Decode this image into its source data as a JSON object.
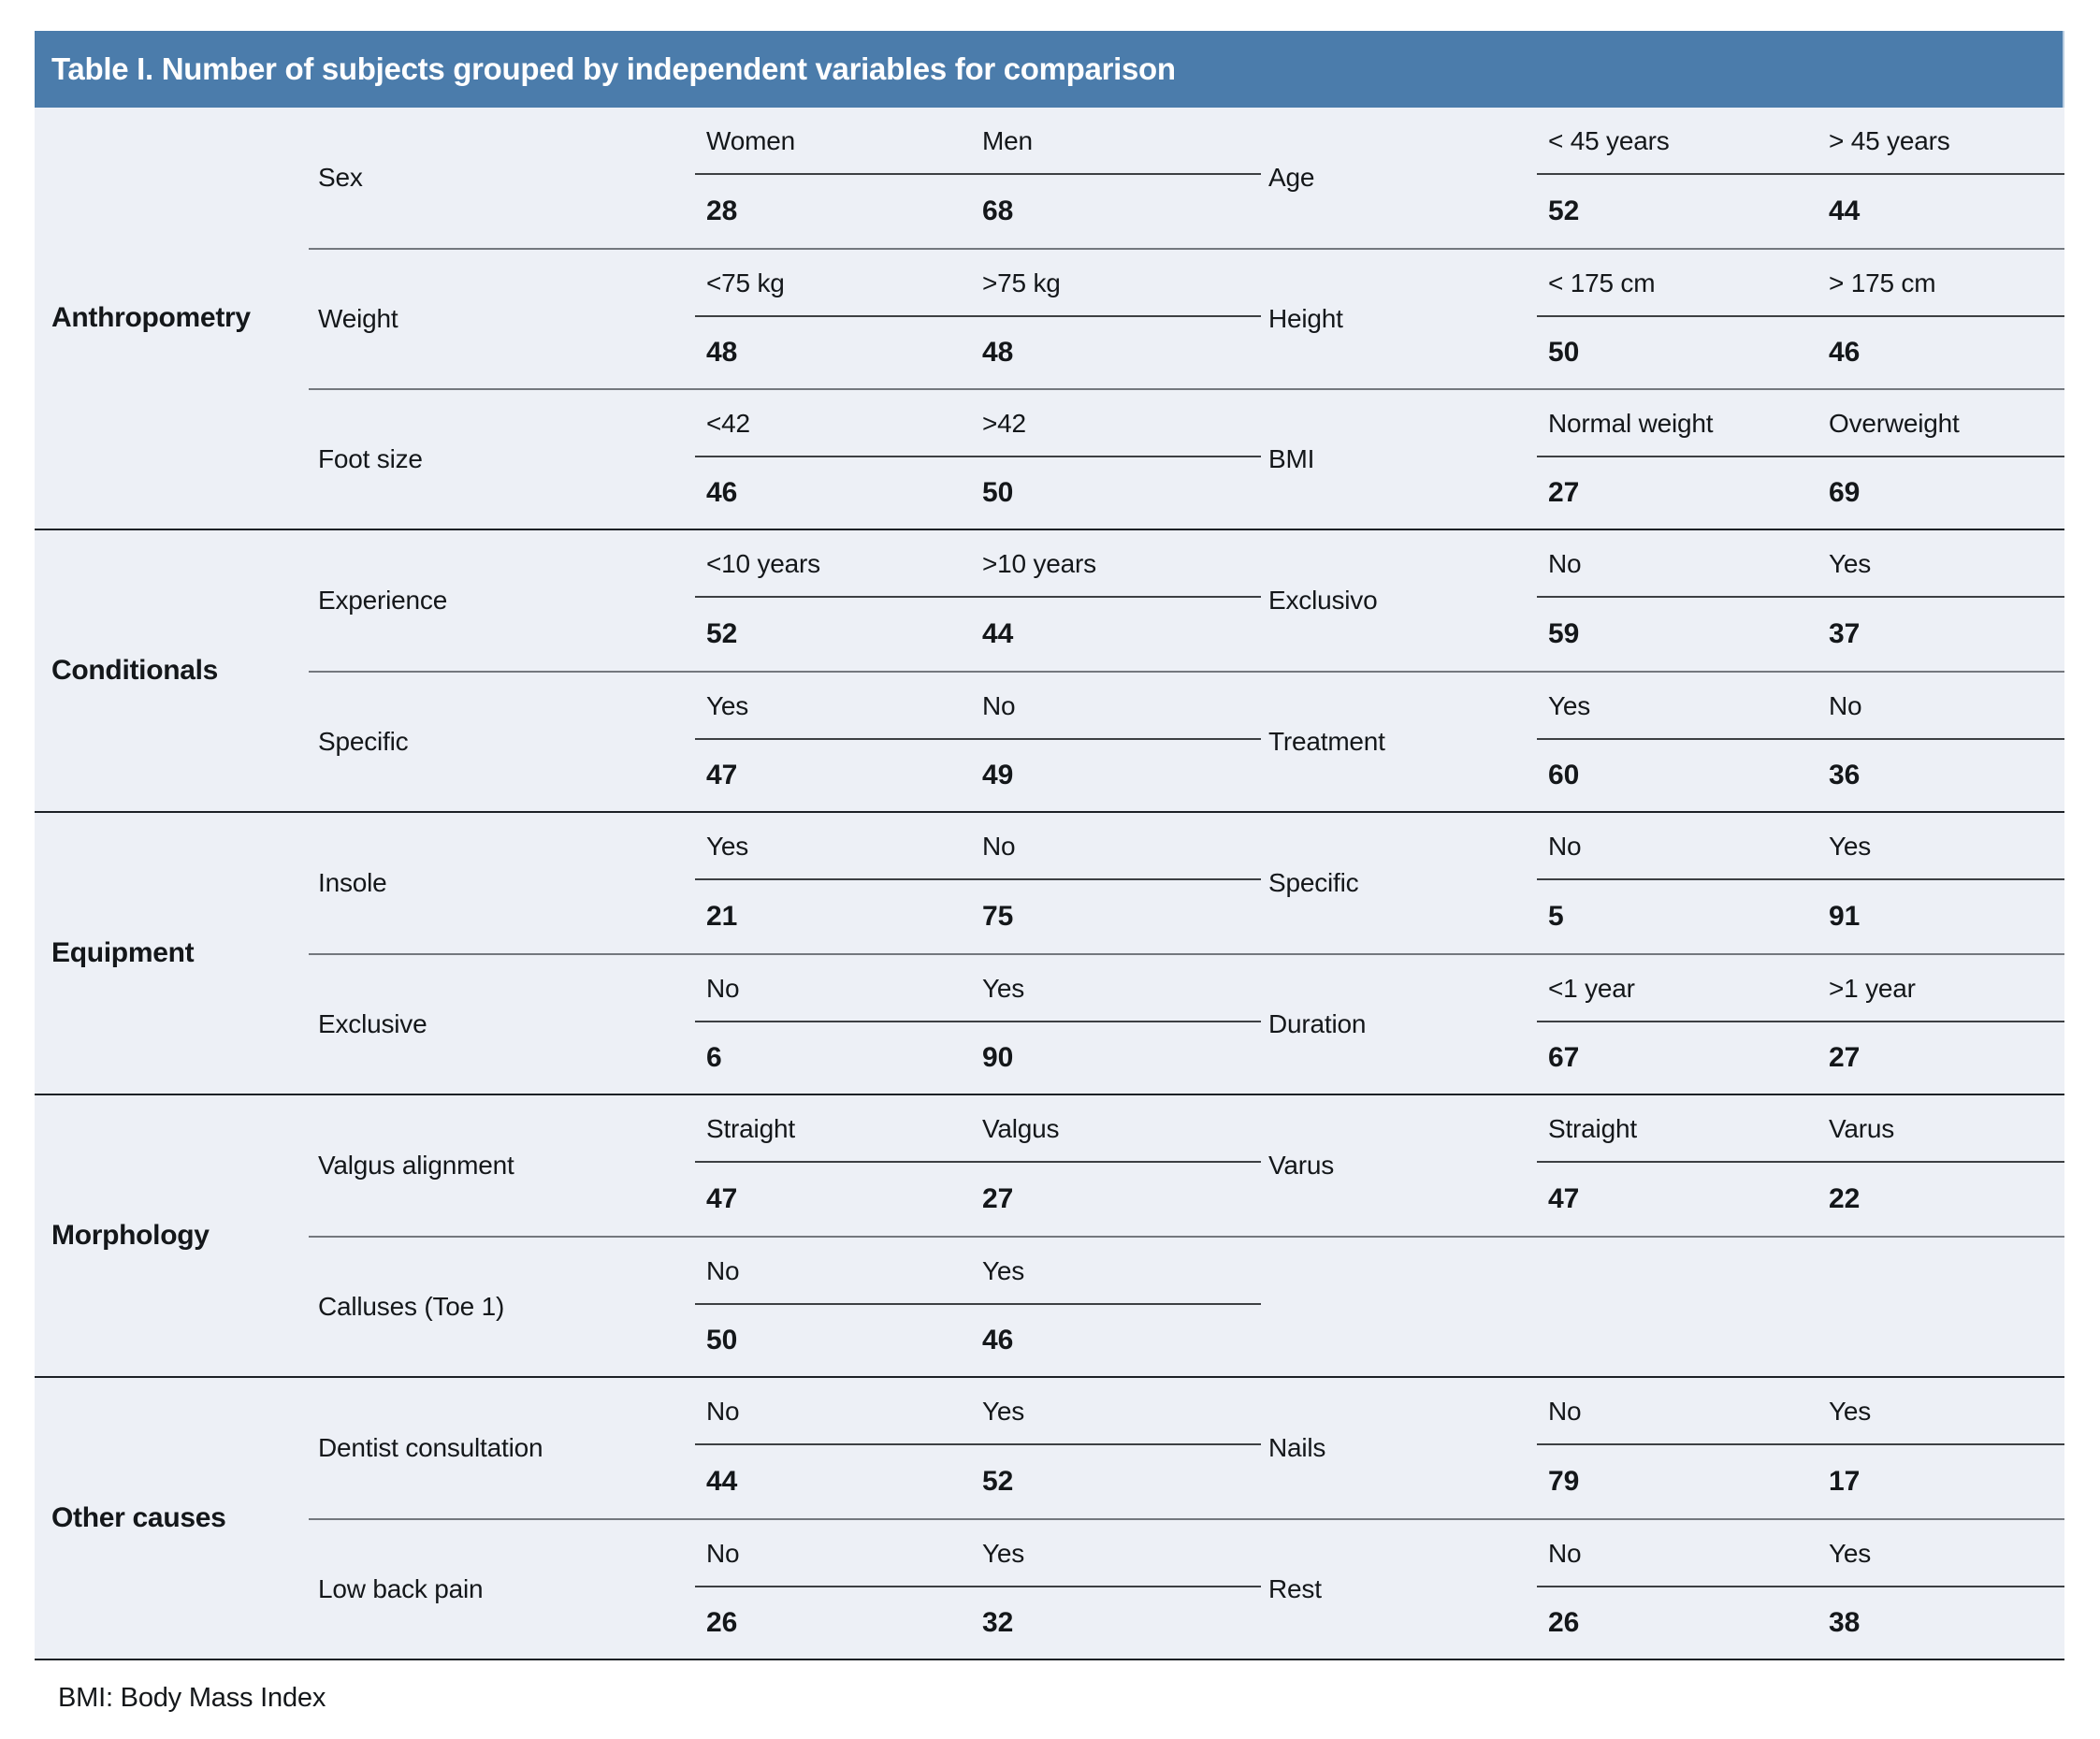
{
  "title": "Table I. Number of subjects grouped by independent variables for comparison",
  "footnote": "BMI: Body Mass Index",
  "colors": {
    "header_bg": "#4b7cab",
    "header_text": "#ffffff",
    "body_bg": "#edf0f6",
    "section_line": "#1d2126",
    "row_line": "#74787e",
    "text": "#14171a"
  },
  "sections": [
    {
      "group": "Anthropometry",
      "rows": [
        {
          "left": {
            "variable": "Sex",
            "headers": [
              "Women",
              "Men"
            ],
            "values": [
              "28",
              "68"
            ]
          },
          "right": {
            "variable": "Age",
            "headers": [
              "< 45 years",
              "> 45 years"
            ],
            "values": [
              "52",
              "44"
            ]
          }
        },
        {
          "left": {
            "variable": "Weight",
            "headers": [
              "<75 kg",
              ">75 kg"
            ],
            "values": [
              "48",
              "48"
            ]
          },
          "right": {
            "variable": "Height",
            "headers": [
              "< 175 cm",
              "> 175 cm"
            ],
            "values": [
              "50",
              "46"
            ]
          }
        },
        {
          "left": {
            "variable": "Foot size",
            "headers": [
              "<42",
              ">42"
            ],
            "values": [
              "46",
              "50"
            ]
          },
          "right": {
            "variable": "BMI",
            "headers": [
              "Normal weight",
              "Overweight"
            ],
            "values": [
              "27",
              "69"
            ]
          }
        }
      ]
    },
    {
      "group": "Conditionals",
      "rows": [
        {
          "left": {
            "variable": "Experience",
            "headers": [
              "<10 years",
              ">10 years"
            ],
            "values": [
              "52",
              "44"
            ]
          },
          "right": {
            "variable": "Exclusivo",
            "headers": [
              "No",
              "Yes"
            ],
            "values": [
              "59",
              "37"
            ]
          }
        },
        {
          "left": {
            "variable": "Specific",
            "headers": [
              "Yes",
              "No"
            ],
            "values": [
              "47",
              "49"
            ]
          },
          "right": {
            "variable": "Treatment",
            "headers": [
              "Yes",
              "No"
            ],
            "values": [
              "60",
              "36"
            ]
          }
        }
      ]
    },
    {
      "group": "Equipment",
      "rows": [
        {
          "left": {
            "variable": "Insole",
            "headers": [
              "Yes",
              "No"
            ],
            "values": [
              "21",
              "75"
            ]
          },
          "right": {
            "variable": "Specific",
            "headers": [
              "No",
              "Yes"
            ],
            "values": [
              "5",
              "91"
            ]
          }
        },
        {
          "left": {
            "variable": "Exclusive",
            "headers": [
              "No",
              "Yes"
            ],
            "values": [
              "6",
              "90"
            ]
          },
          "right": {
            "variable": "Duration",
            "headers": [
              "<1 year",
              ">1 year"
            ],
            "values": [
              "67",
              "27"
            ]
          }
        }
      ]
    },
    {
      "group": "Morphology",
      "rows": [
        {
          "left": {
            "variable": "Valgus alignment",
            "headers": [
              "Straight",
              "Valgus"
            ],
            "values": [
              "47",
              "27"
            ]
          },
          "right": {
            "variable": "Varus",
            "headers": [
              "Straight",
              "Varus"
            ],
            "values": [
              "47",
              "22"
            ]
          }
        },
        {
          "left": {
            "variable": "Calluses (Toe 1)",
            "headers": [
              "No",
              "Yes"
            ],
            "values": [
              "50",
              "46"
            ]
          },
          "right": null
        }
      ]
    },
    {
      "group": "Other causes",
      "rows": [
        {
          "left": {
            "variable": "Dentist consultation",
            "headers": [
              "No",
              "Yes"
            ],
            "values": [
              "44",
              "52"
            ]
          },
          "right": {
            "variable": "Nails",
            "headers": [
              "No",
              "Yes"
            ],
            "values": [
              "79",
              "17"
            ]
          }
        },
        {
          "left": {
            "variable": "Low back pain",
            "headers": [
              "No",
              "Yes"
            ],
            "values": [
              "26",
              "32"
            ]
          },
          "right": {
            "variable": "Rest",
            "headers": [
              "No",
              "Yes"
            ],
            "values": [
              "26",
              "38"
            ]
          }
        }
      ]
    }
  ]
}
